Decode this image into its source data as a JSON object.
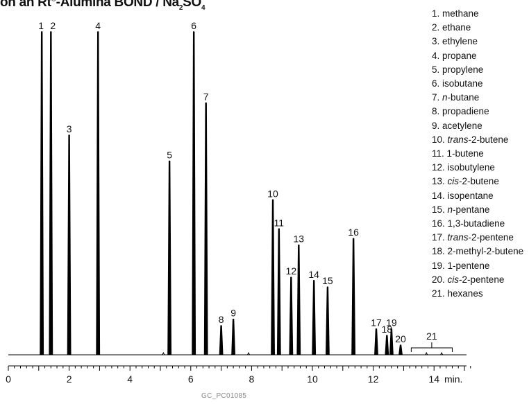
{
  "title": {
    "lead": "on an Rt",
    "sup": "®",
    "mid": "-Alumina BOND / Na",
    "sub1": "2",
    "mid2": "SO",
    "sub2": "4"
  },
  "footer": "GC_PC01085",
  "chart_data": {
    "type": "line",
    "title": "on an Rt®-Alumina BOND / Na2SO4",
    "xlabel": "min.",
    "xlim": [
      0,
      15.3
    ],
    "xticks": [
      0,
      2,
      4,
      6,
      8,
      10,
      12,
      14
    ],
    "x_tick_labels": [
      "0",
      "2",
      "4",
      "6",
      "8",
      "10",
      "12",
      "14"
    ],
    "unit_label": "min.",
    "peaks": [
      {
        "label": "1",
        "rt": 1.1,
        "height": 1.0
      },
      {
        "label": "2",
        "rt": 1.4,
        "height": 1.0
      },
      {
        "label": "3",
        "rt": 2.0,
        "height": 0.68
      },
      {
        "label": "4",
        "rt": 2.95,
        "height": 1.0
      },
      {
        "label": "5",
        "rt": 5.3,
        "height": 0.6
      },
      {
        "label": "6",
        "rt": 6.1,
        "height": 1.0
      },
      {
        "label": "7",
        "rt": 6.5,
        "height": 0.78
      },
      {
        "label": "8",
        "rt": 7.0,
        "height": 0.09
      },
      {
        "label": "9",
        "rt": 7.4,
        "height": 0.11
      },
      {
        "label": "10",
        "rt": 8.7,
        "height": 0.48
      },
      {
        "label": "11",
        "rt": 8.9,
        "height": 0.39
      },
      {
        "label": "12",
        "rt": 9.3,
        "height": 0.24
      },
      {
        "label": "13",
        "rt": 9.55,
        "height": 0.34
      },
      {
        "label": "14",
        "rt": 10.05,
        "height": 0.23
      },
      {
        "label": "15",
        "rt": 10.5,
        "height": 0.21
      },
      {
        "label": "16",
        "rt": 11.35,
        "height": 0.36
      },
      {
        "label": "17",
        "rt": 12.1,
        "height": 0.08
      },
      {
        "label": "18",
        "rt": 12.45,
        "height": 0.06
      },
      {
        "label": "19",
        "rt": 12.6,
        "height": 0.08
      },
      {
        "label": "20",
        "rt": 12.9,
        "height": 0.03
      }
    ],
    "bracket": {
      "label": "21",
      "from": 13.25,
      "to": 14.6
    },
    "legend": [
      {
        "num": "1.",
        "pre": "",
        "em": "",
        "post": "methane"
      },
      {
        "num": "2.",
        "pre": "",
        "em": "",
        "post": "ethane"
      },
      {
        "num": "3.",
        "pre": "",
        "em": "",
        "post": "ethylene"
      },
      {
        "num": "4.",
        "pre": "",
        "em": "",
        "post": "propane"
      },
      {
        "num": "5.",
        "pre": "",
        "em": "",
        "post": "propylene"
      },
      {
        "num": "6.",
        "pre": "",
        "em": "",
        "post": "isobutane"
      },
      {
        "num": "7.",
        "pre": "",
        "em": "n",
        "post": "-butane"
      },
      {
        "num": "8.",
        "pre": "",
        "em": "",
        "post": "propadiene"
      },
      {
        "num": "9.",
        "pre": "",
        "em": "",
        "post": "acetylene"
      },
      {
        "num": "10.",
        "pre": "",
        "em": "trans",
        "post": "-2-butene"
      },
      {
        "num": "11.",
        "pre": "",
        "em": "",
        "post": "1-butene"
      },
      {
        "num": "12.",
        "pre": "",
        "em": "",
        "post": "isobutylene"
      },
      {
        "num": "13.",
        "pre": "",
        "em": "cis",
        "post": "-2-butene"
      },
      {
        "num": "14.",
        "pre": "",
        "em": "",
        "post": "isopentane"
      },
      {
        "num": "15.",
        "pre": "",
        "em": "n",
        "post": "-pentane"
      },
      {
        "num": "16.",
        "pre": "",
        "em": "",
        "post": "1,3-butadiene"
      },
      {
        "num": "17.",
        "pre": "",
        "em": "trans",
        "post": "-2-pentene"
      },
      {
        "num": "18.",
        "pre": "",
        "em": "",
        "post": "2-methyl-2-butene"
      },
      {
        "num": "19.",
        "pre": "",
        "em": "",
        "post": "1-pentene"
      },
      {
        "num": "20.",
        "pre": "",
        "em": "cis",
        "post": "-2-pentene"
      },
      {
        "num": "21.",
        "pre": "",
        "em": "",
        "post": "hexanes"
      }
    ]
  }
}
